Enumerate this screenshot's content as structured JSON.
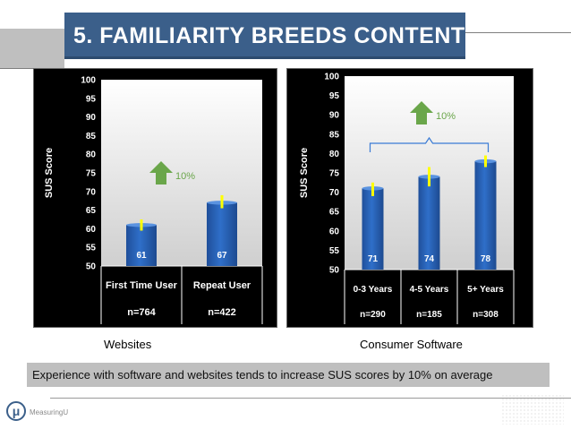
{
  "slide": {
    "title": "5. FAMILIARITY BREEDS CONTENT",
    "summary": "Experience with software and websites tends to increase SUS scores by 10% on average",
    "logo_text": "MeasuringU",
    "logo_glyph": "μ"
  },
  "chart_data": [
    {
      "type": "bar",
      "caption": "Websites",
      "ylabel": "SUS Score",
      "ylim": [
        50,
        100
      ],
      "yticks": [
        50,
        55,
        60,
        65,
        70,
        75,
        80,
        85,
        90,
        95,
        100
      ],
      "categories": [
        "First Time User",
        "Repeat User"
      ],
      "n_labels": [
        "n=764",
        "n=422"
      ],
      "values": [
        61,
        67
      ],
      "value_labels": [
        "61",
        "67"
      ],
      "error_low": [
        59.5,
        65.5
      ],
      "error_high": [
        62.5,
        69
      ],
      "annotation": "10%",
      "bar_color": "#2f6fc9",
      "error_color": "#ffff00",
      "arrow_color": "#6aa64a"
    },
    {
      "type": "bar",
      "caption": "Consumer Software",
      "ylabel": "SUS Score",
      "ylim": [
        50,
        100
      ],
      "yticks": [
        50,
        55,
        60,
        65,
        70,
        75,
        80,
        85,
        90,
        95,
        100
      ],
      "categories": [
        "0-3 Years",
        "4-5 Years",
        "5+ Years"
      ],
      "n_labels": [
        "n=290",
        "n=185",
        "n=308"
      ],
      "values": [
        71,
        74,
        78
      ],
      "value_labels": [
        "71",
        "74",
        "78"
      ],
      "error_low": [
        69,
        71.5,
        76.5
      ],
      "error_high": [
        72.5,
        76.5,
        79.5
      ],
      "annotation": "10%",
      "bar_color": "#2f6fc9",
      "error_color": "#ffff00",
      "arrow_color": "#6aa64a",
      "bracket_color": "#3a7bd5"
    }
  ]
}
